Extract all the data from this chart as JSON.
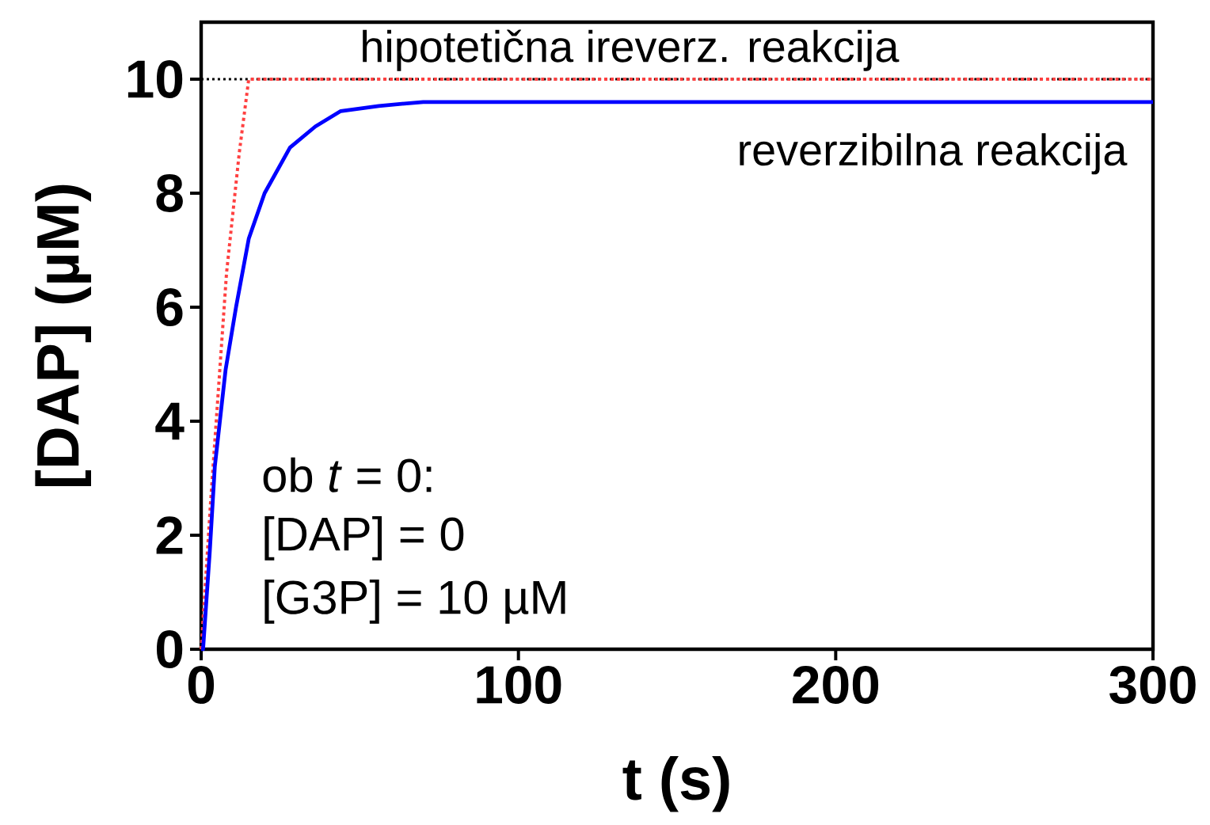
{
  "chart_data": {
    "type": "line",
    "xlabel": "t (s)",
    "ylabel": "[DAP] (µM)",
    "xlim": [
      0,
      300
    ],
    "ylim": [
      0,
      11
    ],
    "xticks": [
      0,
      100,
      200,
      300
    ],
    "yticks": [
      0,
      2,
      4,
      6,
      8,
      10
    ],
    "grid": false,
    "series": [
      {
        "name": "hipotetična ireverz. reakcija",
        "color": "#ff4040",
        "line_style": "dotted",
        "x": [
          0,
          3,
          8,
          12,
          15,
          300
        ],
        "values": [
          0,
          2.6,
          6.6,
          8.7,
          10,
          10
        ]
      },
      {
        "name": "reverzibilna reakcija",
        "color": "#0000ff",
        "line_style": "solid",
        "x": [
          0,
          0.6,
          2.7,
          4.3,
          7.7,
          11,
          15,
          20,
          28,
          36,
          44,
          56,
          70,
          300
        ],
        "values": [
          0,
          0,
          1.7,
          3.2,
          4.9,
          6.0,
          7.2,
          8.0,
          8.8,
          9.17,
          9.44,
          9.53,
          9.6,
          9.6
        ]
      }
    ],
    "ref_lines": [
      {
        "axis": "y",
        "value": 10,
        "color": "#000000",
        "line_style": "dotted"
      }
    ],
    "annotations": [
      "ob *t* = 0:",
      "[DAP] = 0",
      "[G3P] = 10 µM"
    ]
  }
}
